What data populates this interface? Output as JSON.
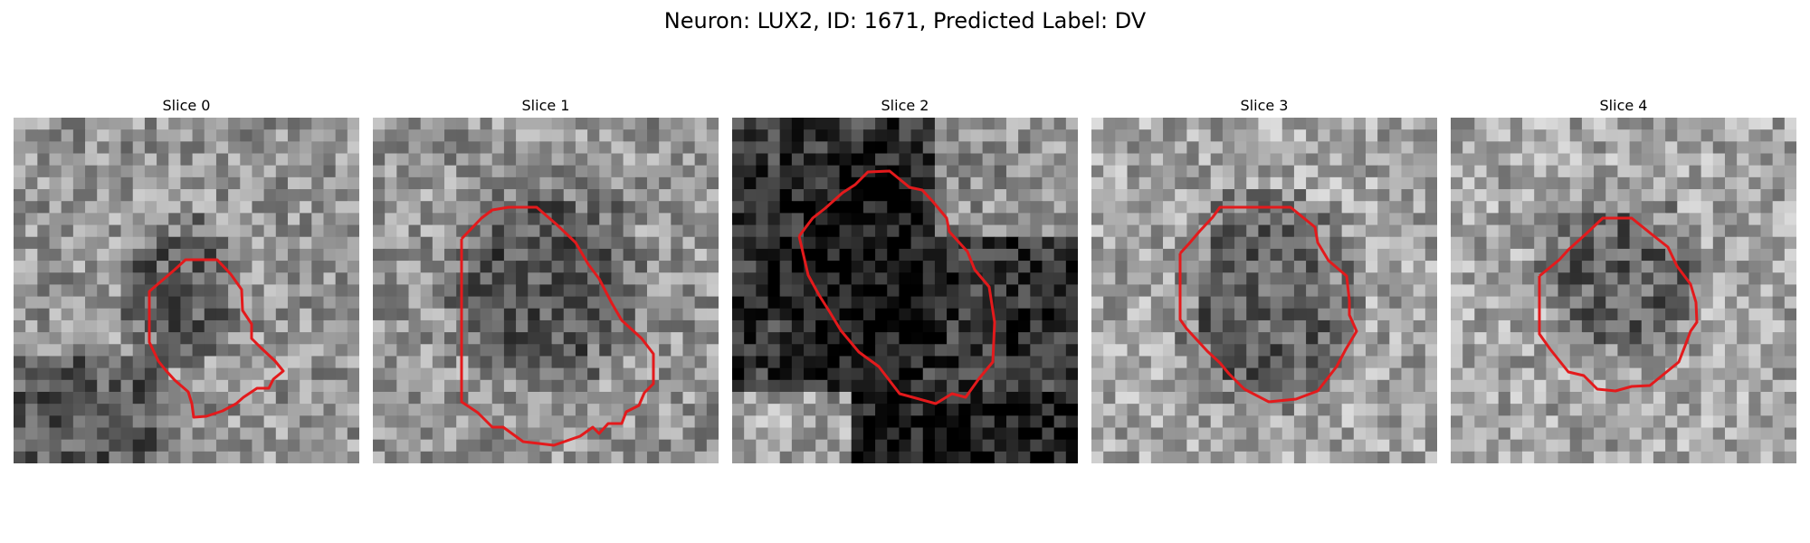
{
  "figure": {
    "title": "Neuron: LUX2, ID: 1671, Predicted Label: DV"
  },
  "panels": [
    {
      "title": "Slice 0",
      "brightness": "mixed",
      "roi_color": "#e31a1c"
    },
    {
      "title": "Slice 1",
      "brightness": "mixed",
      "roi_color": "#e31a1c"
    },
    {
      "title": "Slice 2",
      "brightness": "dark",
      "roi_color": "#e31a1c"
    },
    {
      "title": "Slice 3",
      "brightness": "mixed",
      "roi_color": "#e31a1c"
    },
    {
      "title": "Slice 4",
      "brightness": "mixed",
      "roi_color": "#e31a1c"
    }
  ]
}
